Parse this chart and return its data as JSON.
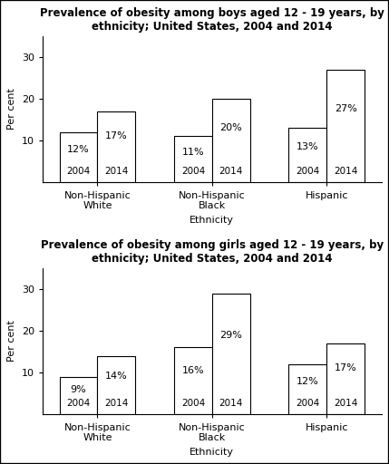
{
  "boys": {
    "title": "Prevalence of obesity among boys aged 12 - 19 years, by\nethnicity; United States, 2004 and 2014",
    "categories": [
      "Non-Hispanic\nWhite",
      "Non-Hispanic\nBlack",
      "Hispanic"
    ],
    "values_2004": [
      12,
      11,
      13
    ],
    "values_2014": [
      17,
      20,
      27
    ],
    "labels_2004": [
      "12%",
      "11%",
      "13%"
    ],
    "labels_2014": [
      "17%",
      "20%",
      "27%"
    ],
    "ylabel": "Per cent",
    "xlabel": "Ethnicity",
    "ylim": [
      0,
      35
    ],
    "yticks": [
      10,
      20,
      30
    ]
  },
  "girls": {
    "title": "Prevalence of obesity among girls aged 12 - 19 years, by\nethnicity; United States, 2004 and 2014",
    "categories": [
      "Non-Hispanic\nWhite",
      "Non-Hispanic\nBlack",
      "Hispanic"
    ],
    "values_2004": [
      9,
      16,
      12
    ],
    "values_2014": [
      14,
      29,
      17
    ],
    "labels_2004": [
      "9%",
      "16%",
      "12%"
    ],
    "labels_2014": [
      "14%",
      "29%",
      "17%"
    ],
    "ylabel": "Per cent",
    "xlabel": "Ethnicity",
    "ylim": [
      0,
      35
    ],
    "yticks": [
      10,
      20,
      30
    ]
  },
  "bar_width": 0.38,
  "bar_color": "white",
  "bar_edgecolor": "black",
  "year_labels": [
    "2004",
    "2014"
  ],
  "bg_color": "white",
  "outer_border_color": "black",
  "title_fontsize": 8.5,
  "label_fontsize": 8,
  "tick_fontsize": 8,
  "year_label_fontsize": 7.5,
  "value_label_fontsize": 8,
  "cat_label_fontsize": 8
}
